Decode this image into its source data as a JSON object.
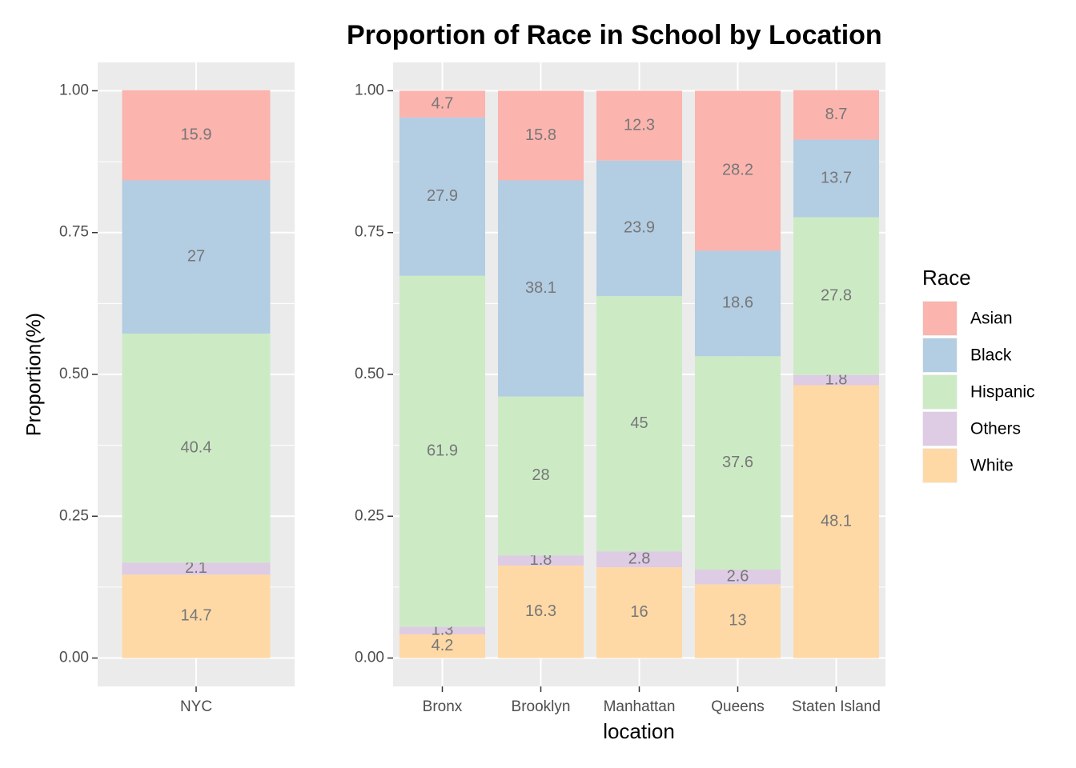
{
  "chart_data": [
    {
      "type": "stacked_bar",
      "y_label": "Proportion(%)",
      "categories": [
        "NYC"
      ],
      "series": [
        {
          "name": "Asian",
          "color": "#FBB4AE",
          "values": [
            0.159
          ],
          "value_labels": [
            "15.9"
          ]
        },
        {
          "name": "Black",
          "color": "#B3CDE3",
          "values": [
            0.27
          ],
          "value_labels": [
            "27"
          ]
        },
        {
          "name": "Hispanic",
          "color": "#CCEBC5",
          "values": [
            0.404
          ],
          "value_labels": [
            "40.4"
          ]
        },
        {
          "name": "Others",
          "color": "#DECBE4",
          "values": [
            0.021
          ],
          "value_labels": [
            "2.1"
          ]
        },
        {
          "name": "White",
          "color": "#FED9A6",
          "values": [
            0.147
          ],
          "value_labels": [
            "14.7"
          ]
        }
      ],
      "ylim": [
        -0.05,
        1.05
      ],
      "yticks": [
        {
          "value": 0,
          "label": "0.00"
        },
        {
          "value": 0.25,
          "label": "0.25"
        },
        {
          "value": 0.5,
          "label": "0.50"
        },
        {
          "value": 0.75,
          "label": "0.75"
        },
        {
          "value": 1,
          "label": "1.00"
        }
      ],
      "grid": true
    },
    {
      "type": "stacked_bar",
      "title": "Proportion of Race in School by Location",
      "x_label": "location",
      "legend_title": "Race",
      "legend": "right",
      "categories": [
        "Bronx",
        "Brooklyn",
        "Manhattan",
        "Queens",
        "Staten Island"
      ],
      "series": [
        {
          "name": "Asian",
          "color": "#FBB4AE",
          "values": [
            0.047,
            0.158,
            0.123,
            0.282,
            0.087
          ],
          "value_labels": [
            "4.7",
            "15.8",
            "12.3",
            "28.2",
            "8.7"
          ]
        },
        {
          "name": "Black",
          "color": "#B3CDE3",
          "values": [
            0.279,
            0.381,
            0.239,
            0.186,
            0.137
          ],
          "value_labels": [
            "27.9",
            "38.1",
            "23.9",
            "18.6",
            "13.7"
          ]
        },
        {
          "name": "Hispanic",
          "color": "#CCEBC5",
          "values": [
            0.619,
            0.28,
            0.45,
            0.376,
            0.278
          ],
          "value_labels": [
            "61.9",
            "28",
            "45",
            "37.6",
            "27.8"
          ]
        },
        {
          "name": "Others",
          "color": "#DECBE4",
          "values": [
            0.013,
            0.018,
            0.028,
            0.026,
            0.018
          ],
          "value_labels": [
            "1.3",
            "1.8",
            "2.8",
            "2.6",
            "1.8"
          ]
        },
        {
          "name": "White",
          "color": "#FED9A6",
          "values": [
            0.042,
            0.163,
            0.16,
            0.13,
            0.481
          ],
          "value_labels": [
            "4.2",
            "16.3",
            "16",
            "13",
            "48.1"
          ]
        }
      ],
      "ylim": [
        -0.05,
        1.05
      ],
      "yticks": [
        {
          "value": 0,
          "label": "0.00"
        },
        {
          "value": 0.25,
          "label": "0.25"
        },
        {
          "value": 0.5,
          "label": "0.50"
        },
        {
          "value": 0.75,
          "label": "0.75"
        },
        {
          "value": 1,
          "label": "1.00"
        }
      ],
      "grid": true
    }
  ]
}
